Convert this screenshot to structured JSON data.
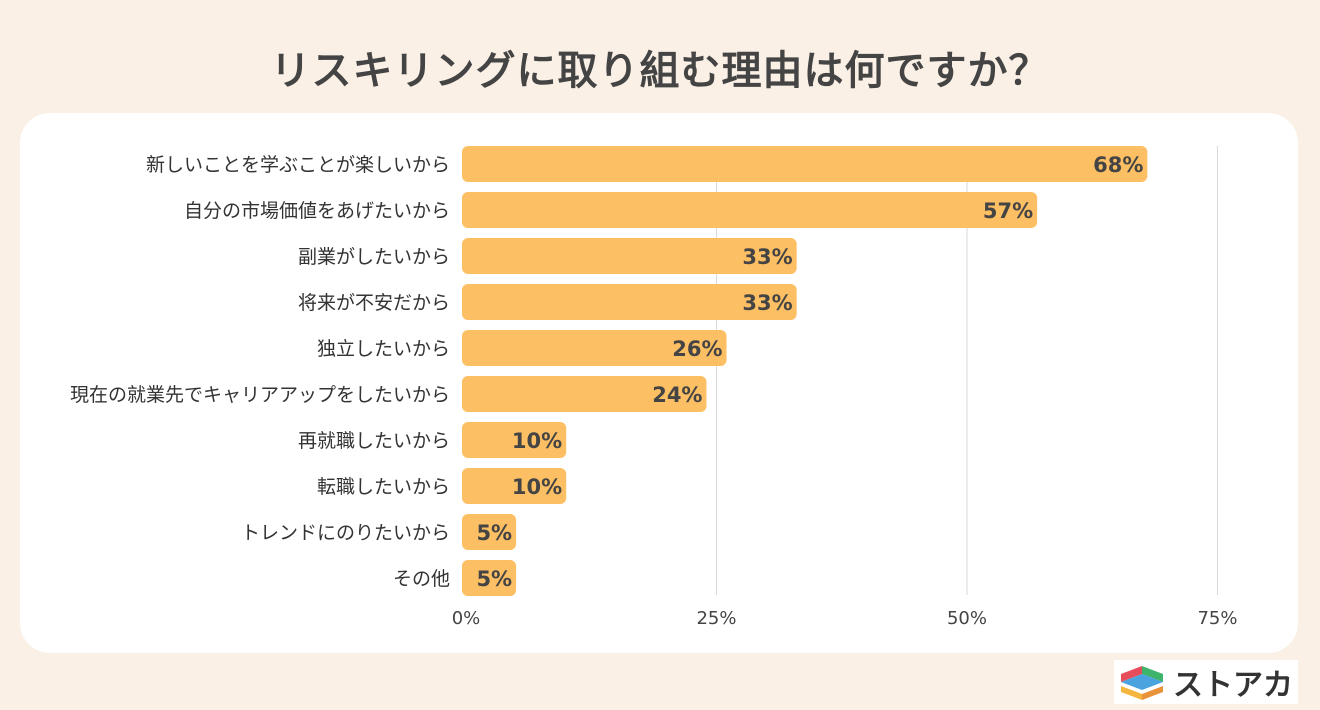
{
  "chart_data": {
    "type": "bar",
    "orientation": "horizontal",
    "title": "リスキリングに取り組む理由は何ですか？",
    "categories": [
      "新しいことを学ぶことが楽しいから",
      "自分の市場価値をあげたいから",
      "副業がしたいから",
      "将来が不安だから",
      "独立したいから",
      "現在の就業先でキャリアアップをしたいから",
      "再就職したいから",
      "転職したいから",
      "トレンドにのりたいから",
      "その他"
    ],
    "values": [
      68,
      57,
      33,
      33,
      26,
      24,
      10,
      10,
      5,
      5
    ],
    "value_labels": [
      "68%",
      "57%",
      "33%",
      "33%",
      "26%",
      "24%",
      "10%",
      "10%",
      "5%",
      "5%"
    ],
    "xlim": [
      0,
      75
    ],
    "xticks": [
      0,
      25,
      50,
      75
    ],
    "xtick_labels": [
      "0%",
      "25%",
      "50%",
      "75%"
    ],
    "bar_color": "#fdbf63",
    "grid": true
  },
  "logo": {
    "text": "ストアカ"
  }
}
